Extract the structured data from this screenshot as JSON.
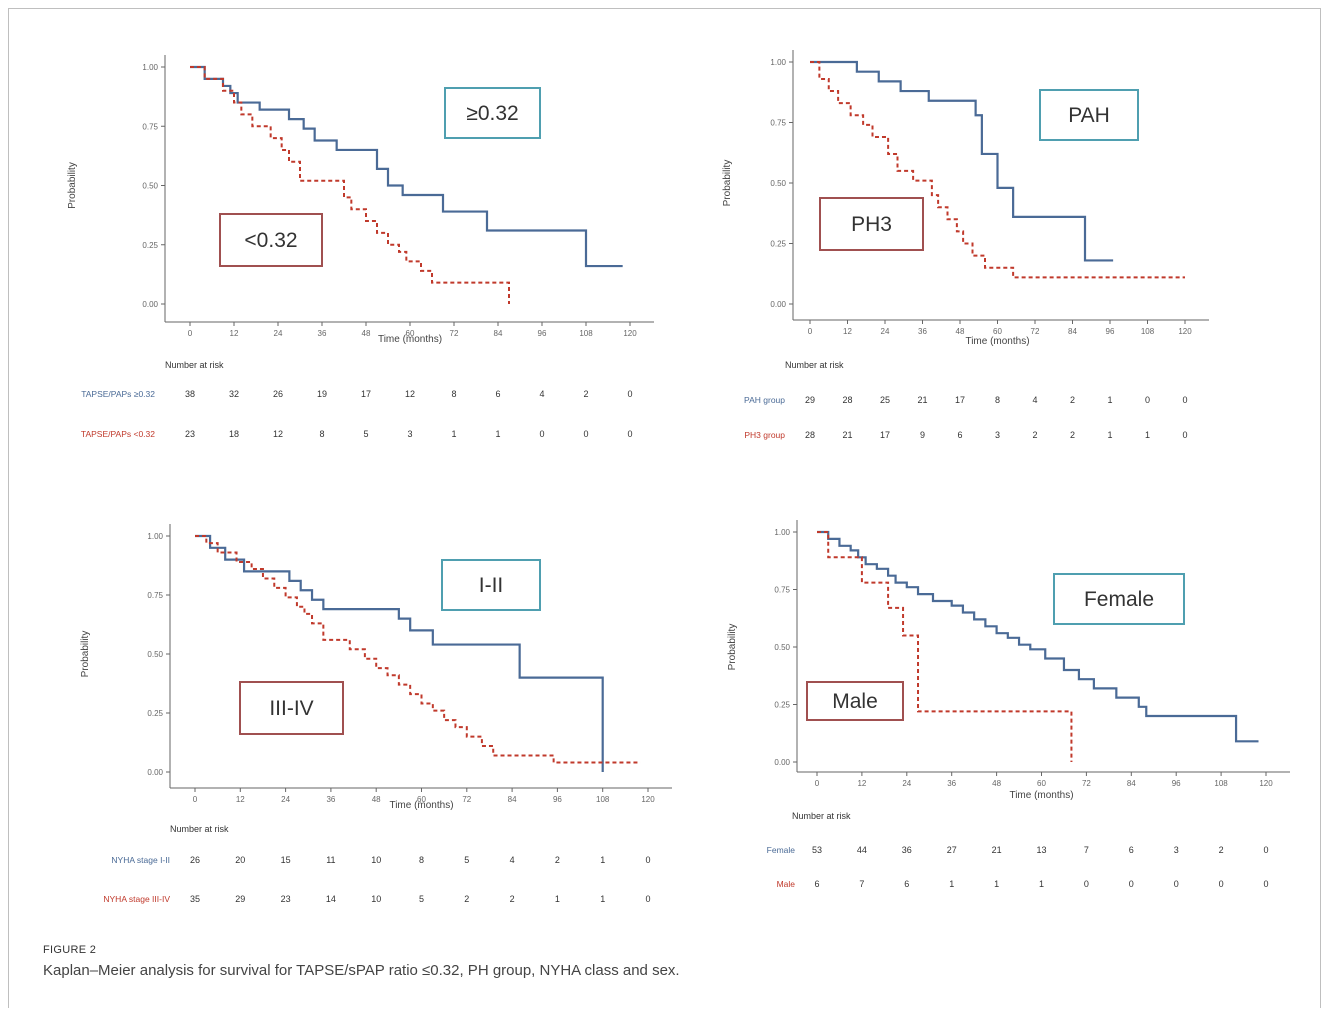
{
  "figure_label": "FIGURE 2",
  "caption": "Kaplan–Meier analysis for survival for TAPSE/sPAP ratio ≤0.32, PH group, NYHA class and sex.",
  "colors": {
    "solid": "#4a6a96",
    "dashed": "#c0392b",
    "solid_box": "#4f9fb0",
    "dashed_box": "#a05050"
  },
  "chart_data": [
    {
      "type": "line",
      "ylabel": "Probability",
      "xlabel": "Time (months)",
      "xlim": [
        0,
        120
      ],
      "ylim": [
        0,
        1
      ],
      "x_ticks": [
        "0",
        "12",
        "24",
        "36",
        "48",
        "60",
        "72",
        "84",
        "96",
        "108",
        "120"
      ],
      "y_ticks": [
        "0.00",
        "0.25",
        "0.50",
        "0.75",
        "1.00"
      ],
      "risk_title": "Number at risk",
      "series": [
        {
          "name": "TAPSE/PAPs ≥0.32",
          "style": "solid",
          "callout": "≥0.32",
          "x": [
            0,
            4,
            9,
            11,
            13,
            18,
            19,
            27,
            31,
            34,
            40,
            46,
            51,
            54,
            58,
            60,
            69,
            81,
            108,
            111,
            118
          ],
          "y": [
            1.0,
            0.95,
            0.92,
            0.89,
            0.85,
            0.85,
            0.82,
            0.78,
            0.74,
            0.69,
            0.65,
            0.65,
            0.57,
            0.5,
            0.46,
            0.46,
            0.39,
            0.31,
            0.16,
            0.16,
            0.16
          ],
          "risk": [
            "38",
            "32",
            "26",
            "19",
            "17",
            "12",
            "8",
            "6",
            "4",
            "2",
            "0"
          ]
        },
        {
          "name": "TAPSE/PAPs <0.32",
          "style": "dashed",
          "callout": "<0.32",
          "x": [
            0,
            4,
            9,
            12,
            14,
            17,
            22,
            25,
            27,
            30,
            38,
            42,
            44,
            48,
            51,
            54,
            57,
            59,
            63,
            66,
            72,
            83,
            87,
            87
          ],
          "y": [
            1.0,
            0.95,
            0.9,
            0.85,
            0.8,
            0.75,
            0.7,
            0.65,
            0.6,
            0.52,
            0.52,
            0.45,
            0.4,
            0.35,
            0.3,
            0.25,
            0.22,
            0.18,
            0.14,
            0.09,
            0.09,
            0.09,
            0.05,
            0.0
          ],
          "risk": [
            "23",
            "18",
            "12",
            "8",
            "5",
            "3",
            "1",
            "1",
            "0",
            "0",
            "0"
          ]
        }
      ]
    },
    {
      "type": "line",
      "ylabel": "Probability",
      "xlabel": "Time (months)",
      "xlim": [
        0,
        120
      ],
      "ylim": [
        0,
        1
      ],
      "x_ticks": [
        "0",
        "12",
        "24",
        "36",
        "48",
        "60",
        "72",
        "84",
        "96",
        "108",
        "120"
      ],
      "y_ticks": [
        "0.00",
        "0.25",
        "0.50",
        "0.75",
        "1.00"
      ],
      "risk_title": "Number at risk",
      "series": [
        {
          "name": "PAH group",
          "style": "solid",
          "callout": "PAH",
          "x": [
            0,
            15,
            22,
            29,
            38,
            53,
            55,
            60,
            65,
            88,
            97
          ],
          "y": [
            1.0,
            0.96,
            0.92,
            0.88,
            0.84,
            0.78,
            0.62,
            0.48,
            0.36,
            0.18,
            0.18
          ],
          "risk": [
            "29",
            "28",
            "25",
            "21",
            "17",
            "8",
            "4",
            "2",
            "1",
            "0",
            "0"
          ]
        },
        {
          "name": "PH3 group",
          "style": "dashed",
          "callout": "PH3",
          "x": [
            0,
            3,
            6,
            9,
            13,
            17,
            20,
            25,
            28,
            33,
            39,
            41,
            44,
            47,
            49,
            52,
            56,
            65,
            75,
            85,
            97,
            109,
            120
          ],
          "y": [
            1.0,
            0.93,
            0.88,
            0.83,
            0.78,
            0.74,
            0.69,
            0.62,
            0.55,
            0.51,
            0.45,
            0.4,
            0.35,
            0.3,
            0.25,
            0.2,
            0.15,
            0.11,
            0.11,
            0.11,
            0.11,
            0.11,
            0.11
          ],
          "risk": [
            "28",
            "21",
            "17",
            "9",
            "6",
            "3",
            "2",
            "2",
            "1",
            "1",
            "0"
          ]
        }
      ]
    },
    {
      "type": "line",
      "ylabel": "Probability",
      "xlabel": "Time (months)",
      "xlim": [
        0,
        120
      ],
      "ylim": [
        0,
        1
      ],
      "x_ticks": [
        "0",
        "12",
        "24",
        "36",
        "48",
        "60",
        "72",
        "84",
        "96",
        "108",
        "120"
      ],
      "y_ticks": [
        "0.00",
        "0.25",
        "0.50",
        "0.75",
        "1.00"
      ],
      "risk_title": "Number at risk",
      "series": [
        {
          "name": "NYHA stage I-II",
          "style": "solid",
          "callout": "I-II",
          "x": [
            0,
            4,
            8,
            13,
            25,
            28,
            31,
            34,
            54,
            57,
            63,
            86,
            108,
            108
          ],
          "y": [
            1.0,
            0.95,
            0.9,
            0.85,
            0.81,
            0.77,
            0.73,
            0.69,
            0.65,
            0.6,
            0.54,
            0.4,
            0.4,
            0.0
          ],
          "risk": [
            "26",
            "20",
            "15",
            "11",
            "10",
            "8",
            "5",
            "4",
            "2",
            "1",
            "0"
          ]
        },
        {
          "name": "NYHA stage III-IV",
          "style": "dashed",
          "callout": "III-IV",
          "x": [
            0,
            3,
            6,
            11,
            15,
            18,
            21,
            24,
            27,
            29,
            31,
            34,
            41,
            45,
            48,
            51,
            54,
            57,
            60,
            63,
            66,
            69,
            72,
            76,
            79,
            82,
            85,
            88,
            95,
            105,
            118
          ],
          "y": [
            1.0,
            0.97,
            0.93,
            0.89,
            0.86,
            0.82,
            0.78,
            0.74,
            0.7,
            0.67,
            0.63,
            0.56,
            0.52,
            0.48,
            0.44,
            0.41,
            0.37,
            0.33,
            0.29,
            0.26,
            0.22,
            0.19,
            0.15,
            0.11,
            0.07,
            0.07,
            0.07,
            0.07,
            0.04,
            0.04,
            0.04
          ],
          "risk": [
            "35",
            "29",
            "23",
            "14",
            "10",
            "5",
            "2",
            "2",
            "1",
            "1",
            "0"
          ]
        }
      ]
    },
    {
      "type": "line",
      "ylabel": "Probability",
      "xlabel": "Time (months)",
      "xlim": [
        0,
        120
      ],
      "ylim": [
        0,
        1
      ],
      "x_ticks": [
        "0",
        "12",
        "24",
        "36",
        "48",
        "60",
        "72",
        "84",
        "96",
        "108",
        "120"
      ],
      "y_ticks": [
        "0.00",
        "0.25",
        "0.50",
        "0.75",
        "1.00"
      ],
      "risk_title": "Number at risk",
      "series": [
        {
          "name": "Female",
          "style": "solid",
          "callout": "Female",
          "x": [
            0,
            3,
            6,
            9,
            11,
            13,
            16,
            19,
            21,
            24,
            27,
            31,
            36,
            39,
            42,
            45,
            48,
            51,
            54,
            57,
            61,
            66,
            70,
            74,
            80,
            86,
            88,
            112,
            118
          ],
          "y": [
            1.0,
            0.97,
            0.94,
            0.92,
            0.89,
            0.86,
            0.84,
            0.81,
            0.78,
            0.76,
            0.73,
            0.7,
            0.68,
            0.65,
            0.62,
            0.59,
            0.56,
            0.54,
            0.51,
            0.49,
            0.45,
            0.4,
            0.36,
            0.32,
            0.28,
            0.24,
            0.2,
            0.09,
            0.09
          ],
          "risk": [
            "53",
            "44",
            "36",
            "27",
            "21",
            "13",
            "7",
            "6",
            "3",
            "2",
            "0"
          ]
        },
        {
          "name": "Male",
          "style": "dashed",
          "callout": "Male",
          "x": [
            0,
            3,
            12,
            19,
            23,
            27,
            68,
            68
          ],
          "y": [
            1.0,
            0.89,
            0.78,
            0.67,
            0.55,
            0.22,
            0.22,
            0.0
          ],
          "risk": [
            "6",
            "7",
            "6",
            "1",
            "1",
            "1",
            "0",
            "0",
            "0",
            "0",
            "0"
          ]
        }
      ]
    }
  ]
}
